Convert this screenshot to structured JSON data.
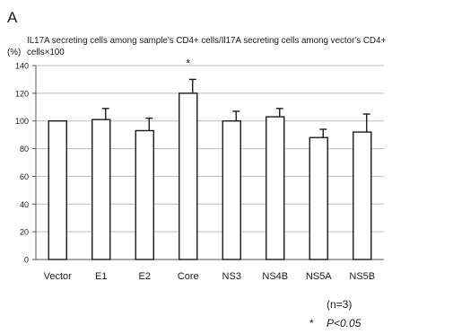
{
  "chart_data": {
    "type": "bar",
    "panel_label": "A",
    "ylabel_line1": "IL17A secreting cells among sample's CD4+ cells/Il17A secreting cells among vector's CD4+",
    "ylabel_line2": "cells×100",
    "y_unit": "(%)",
    "categories": [
      "Vector",
      "E1",
      "E2",
      "Core",
      "NS3",
      "NS4B",
      "NS5A",
      "NS5B"
    ],
    "values": [
      100,
      101,
      93,
      120,
      100,
      103,
      88,
      92
    ],
    "error": [
      0,
      8,
      9,
      10,
      7,
      6,
      6,
      13
    ],
    "significant": [
      false,
      false,
      false,
      true,
      false,
      false,
      false,
      false
    ],
    "significance_marker": "*",
    "ylim": [
      0,
      140
    ],
    "yticks": [
      0,
      20,
      40,
      60,
      80,
      100,
      120,
      140
    ],
    "grid": true,
    "bar_fill": "#ffffff",
    "bar_stroke": "#1a1a1a",
    "grid_color": "#bdbdbd",
    "note_n": "(n=3)",
    "note_p_marker": "*",
    "note_p_text": "P<0.05"
  }
}
